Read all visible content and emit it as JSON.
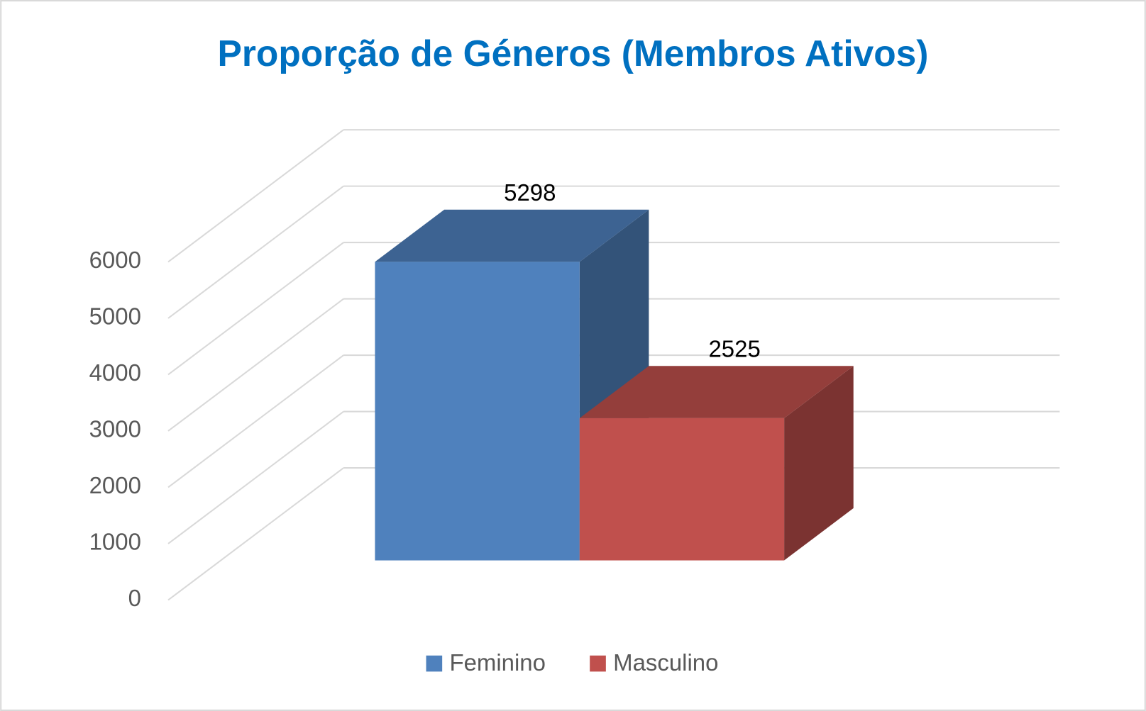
{
  "chart_data": {
    "type": "bar3d",
    "title": "Proporção de Géneros (Membros Ativos)",
    "series": [
      {
        "name": "Feminino",
        "color": "#4f81bd",
        "values": [
          5298
        ]
      },
      {
        "name": "Masculino",
        "color": "#c0504d",
        "values": [
          2525
        ]
      }
    ],
    "ylim": [
      0,
      6000
    ],
    "yticks": [
      0,
      1000,
      2000,
      3000,
      4000,
      5000,
      6000
    ],
    "grid": true,
    "legend": "bottom"
  }
}
